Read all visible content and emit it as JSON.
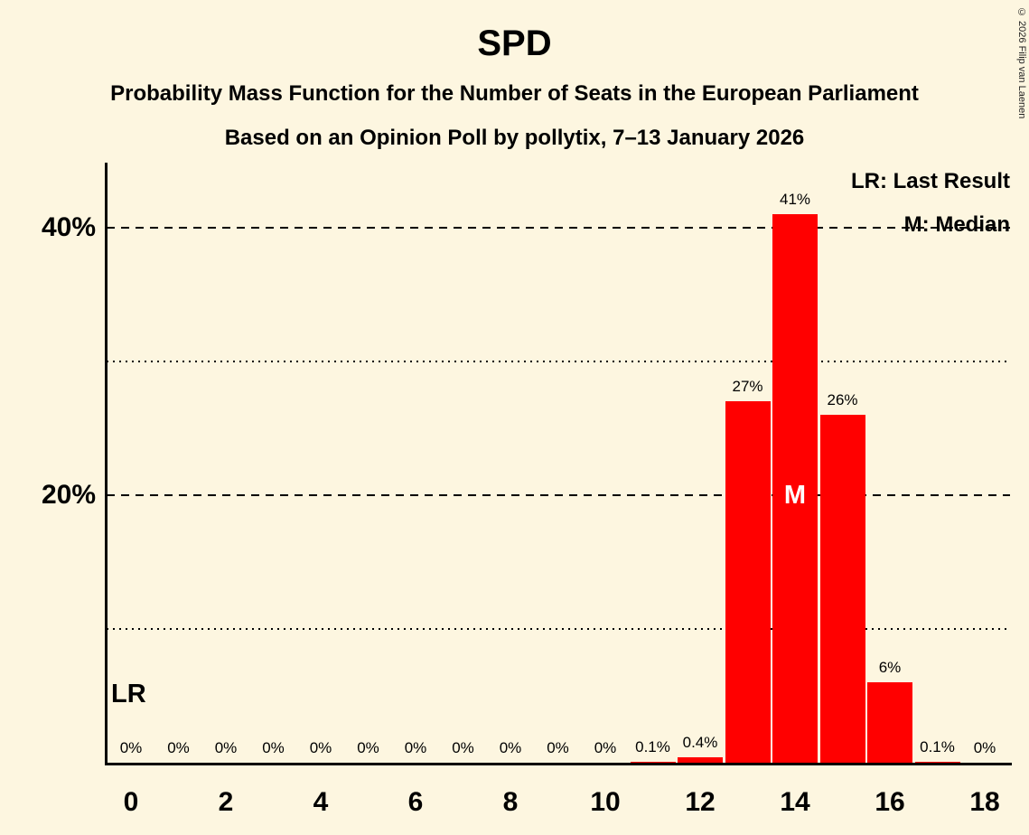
{
  "page": {
    "title": "SPD",
    "subtitle1": "Probability Mass Function for the Number of Seats in the European Parliament",
    "subtitle2": "Based on an Opinion Poll by pollytix, 7–13 January 2026",
    "copyright": "© 2026 Filip van Laenen"
  },
  "legend": {
    "lr": "LR: Last Result",
    "m": "M: Median"
  },
  "annotations": {
    "lr_label": "LR",
    "median_label": "M"
  },
  "chart_data": {
    "type": "bar",
    "title": "SPD",
    "xlabel": "Number of Seats",
    "ylabel": "Probability",
    "seats": [
      0,
      1,
      2,
      3,
      4,
      5,
      6,
      7,
      8,
      9,
      10,
      11,
      12,
      13,
      14,
      15,
      16,
      17,
      18
    ],
    "values": [
      0,
      0,
      0,
      0,
      0,
      0,
      0,
      0,
      0,
      0,
      0,
      0.1,
      0.4,
      27,
      41,
      26,
      6,
      0.1,
      0
    ],
    "value_labels": [
      "0%",
      "0%",
      "0%",
      "0%",
      "0%",
      "0%",
      "0%",
      "0%",
      "0%",
      "0%",
      "0%",
      "0.1%",
      "0.4%",
      "27%",
      "41%",
      "26%",
      "6%",
      "0.1%",
      "0%"
    ],
    "x_ticks": [
      0,
      2,
      4,
      6,
      8,
      10,
      12,
      14,
      16,
      18
    ],
    "x_tick_labels": [
      "0",
      "2",
      "4",
      "6",
      "8",
      "10",
      "12",
      "14",
      "16",
      "18"
    ],
    "y_ticks": [
      {
        "value": 20,
        "label": "20%"
      },
      {
        "value": 40,
        "label": "40%"
      }
    ],
    "dashed_gridlines": [
      20,
      40
    ],
    "dotted_gridlines": [
      10,
      30
    ],
    "ylim": [
      0,
      45
    ],
    "median_seat": 14,
    "last_result_seat": 0,
    "colors": {
      "bar": "#ff0000",
      "background": "#fdf6e0",
      "text": "#000000",
      "median_text": "#ffffff"
    },
    "legend_position": "top-right",
    "grid": true
  }
}
